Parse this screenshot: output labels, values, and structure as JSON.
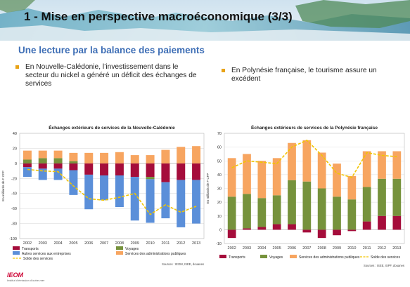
{
  "slide": {
    "title": "1 - Mise en perspective macroéconomique (3/3)",
    "subtitle": "Une lecture par la balance des paiements",
    "bullet_left": "En Nouvelle-Calédonie, l’investissement dans le secteur du nickel a généré un déficit des échanges de services",
    "bullet_right": "En Polynésie française, le tourisme assure un excédent",
    "logo_text": "IEOM",
    "logo_sub": "Institut d’émission d’outre-mer",
    "accent_color": "#3f6fb6",
    "bullet_color": "#e8a317"
  },
  "chart_data": [
    {
      "type": "bar",
      "stacked": true,
      "title": "Échanges extérieurs de services de la Nouvelle-Calédonie",
      "ylabel": "En milliards de F CFP",
      "source": "Sources : IEOM, ISEE, douanes",
      "ylim": [
        -100,
        40
      ],
      "yticks": [
        40,
        20,
        0,
        -20,
        -40,
        -60,
        -80,
        -100
      ],
      "categories": [
        "2002",
        "2003",
        "2004",
        "2005",
        "2006",
        "2007",
        "2008",
        "2009",
        "2010",
        "2011",
        "2012",
        "2013"
      ],
      "series": [
        {
          "name": "Transports",
          "color": "#a50d3b",
          "values": [
            -5,
            -7,
            -7,
            -9,
            -15,
            -16,
            -16,
            -18,
            -18,
            -25,
            -22,
            -22
          ]
        },
        {
          "name": "Voyages",
          "color": "#76923c",
          "values": [
            5,
            7,
            7,
            3,
            0,
            0,
            0,
            0,
            -3,
            0,
            0,
            0
          ]
        },
        {
          "name": "Autres services aux entreprises",
          "color": "#5b8fd9",
          "values": [
            -13,
            -15,
            -15,
            -33,
            -46,
            -33,
            -42,
            -58,
            -58,
            -48,
            -63,
            -58
          ]
        },
        {
          "name": "Services des administrations publiques",
          "color": "#f7a560",
          "values": [
            12,
            10,
            10,
            11,
            14,
            14,
            15,
            11,
            11,
            18,
            22,
            23
          ]
        }
      ],
      "line": {
        "name": "Solde des services",
        "color": "#f2c500",
        "values": [
          -8,
          -10,
          -11,
          -30,
          -47,
          -49,
          -45,
          -40,
          -68,
          -55,
          -65,
          -57
        ]
      },
      "legend_position": "bottom"
    },
    {
      "type": "bar",
      "stacked": true,
      "title": "Échanges extérieurs de services de la Polynésie française",
      "ylabel": "En milliards de F CFP",
      "source": "Sources : ISEE, ISPF, douanes",
      "ylim": [
        -10,
        70
      ],
      "yticks": [
        70,
        60,
        50,
        40,
        30,
        20,
        10,
        0,
        -10
      ],
      "categories": [
        "2002",
        "2003",
        "2004",
        "2005",
        "2006",
        "2007",
        "2008",
        "2009",
        "2010",
        "2011",
        "2012",
        "2013"
      ],
      "series": [
        {
          "name": "Transports",
          "color": "#a50d3b",
          "values": [
            -6,
            1,
            2,
            4,
            4,
            -2,
            -6,
            -4,
            -1,
            6,
            10,
            10
          ]
        },
        {
          "name": "Voyages",
          "color": "#76923c",
          "values": [
            24,
            25,
            21,
            21,
            32,
            35,
            30,
            24,
            22,
            25,
            27,
            27
          ]
        },
        {
          "name": "Services des administrations publiques",
          "color": "#f7a560",
          "values": [
            28,
            29,
            27,
            27,
            27,
            30,
            26,
            24,
            17,
            26,
            20,
            20
          ]
        }
      ],
      "line": {
        "name": "Solde des services",
        "color": "#f2c500",
        "values": [
          45,
          50,
          49,
          48,
          60,
          65,
          54,
          41,
          38,
          56,
          54,
          53
        ]
      },
      "legend_position": "bottom"
    }
  ]
}
